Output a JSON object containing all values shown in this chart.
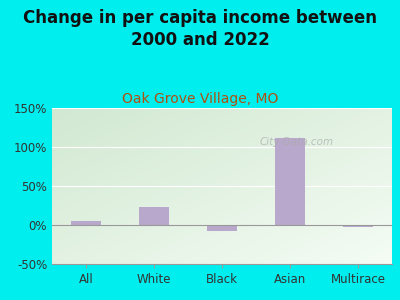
{
  "categories": [
    "All",
    "White",
    "Black",
    "Asian",
    "Multirace"
  ],
  "values": [
    5,
    23,
    -8,
    112,
    -2
  ],
  "bar_color": "#b8a8cc",
  "title": "Change in per capita income between\n2000 and 2022",
  "subtitle": "Oak Grove Village, MO",
  "subtitle_color": "#b05010",
  "background_color": "#00eeee",
  "plot_bg_left": "#d8ead8",
  "plot_bg_right": "#eef8ee",
  "ylim": [
    -50,
    150
  ],
  "yticks": [
    -50,
    0,
    50,
    100,
    150
  ],
  "ytick_labels": [
    "-50%",
    "0%",
    "50%",
    "100%",
    "150%"
  ],
  "watermark": "City-Data.com",
  "title_fontsize": 12,
  "subtitle_fontsize": 10,
  "tick_fontsize": 8.5
}
